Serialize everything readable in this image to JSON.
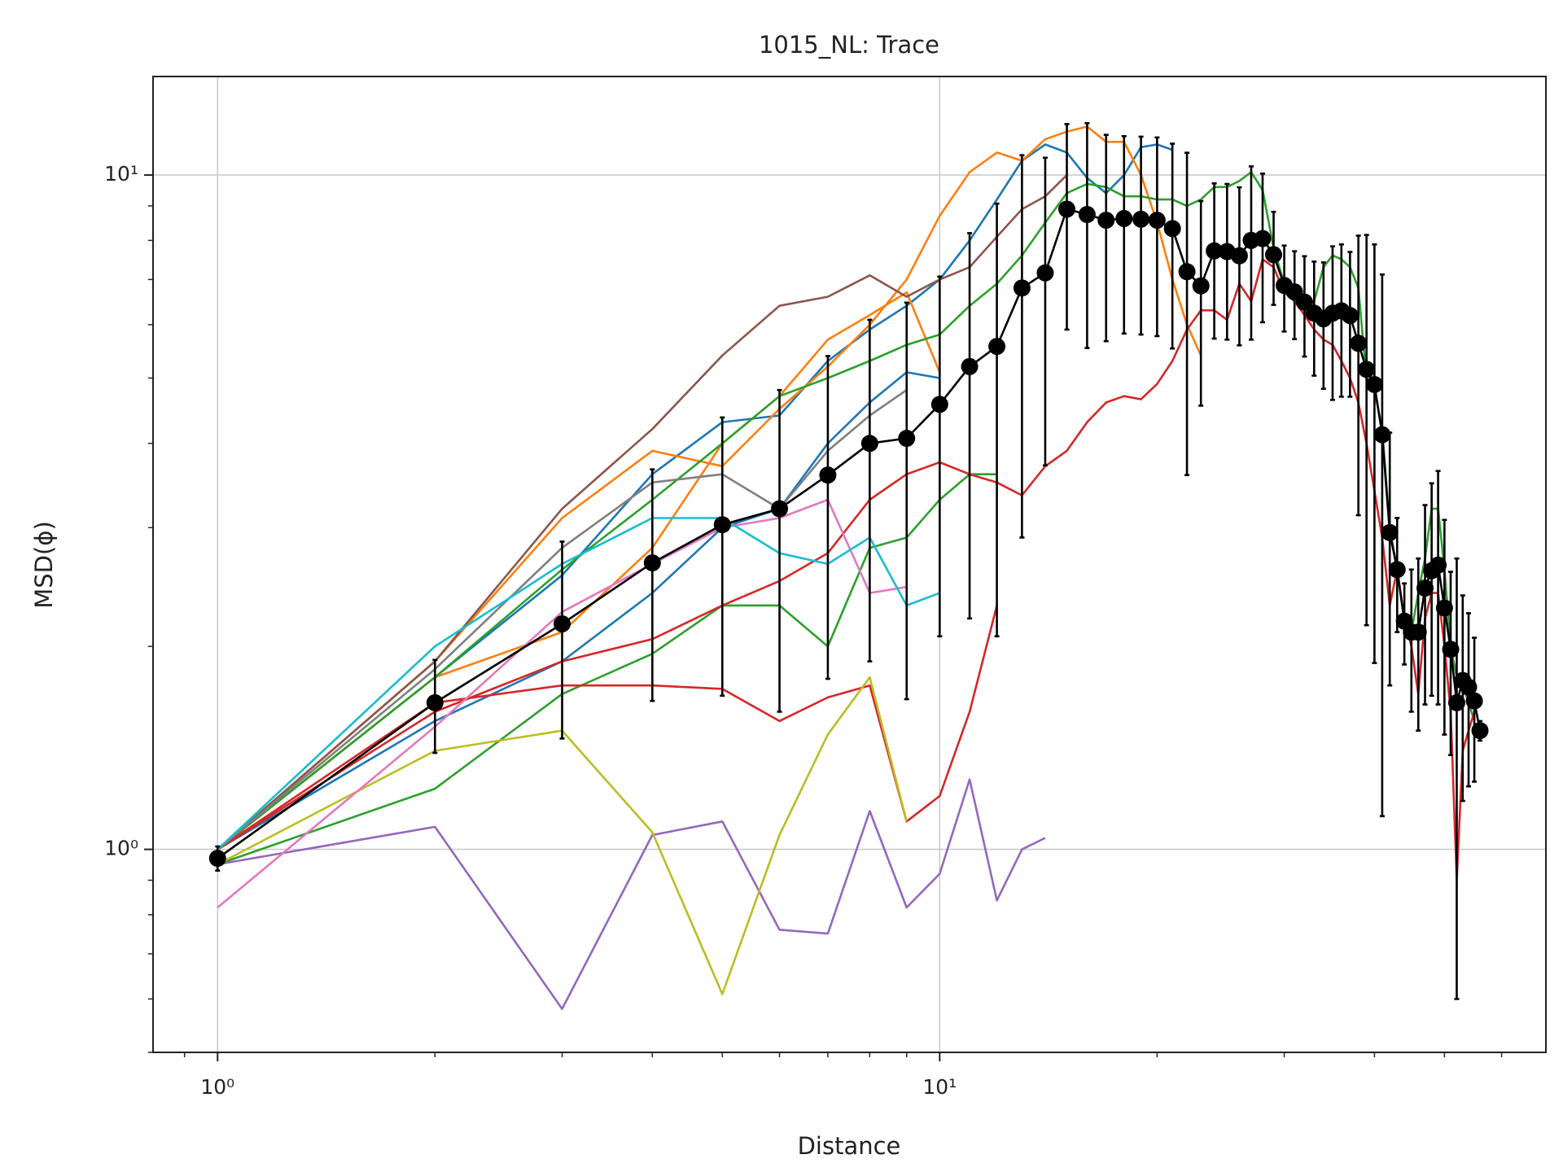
{
  "chart_data": {
    "type": "line",
    "title": "1015_NL: Trace",
    "xlabel": "Distance",
    "ylabel": "MSD(ϕ)",
    "xscale": "log",
    "yscale": "log",
    "grid": true,
    "xlim": [
      0.814,
      69.1
    ],
    "ylim": [
      0.5,
      14.0
    ],
    "xticks": [
      {
        "value": 1,
        "label": "10⁰"
      },
      {
        "value": 10,
        "label": "10¹"
      }
    ],
    "yticks": [
      {
        "value": 1,
        "label": "10⁰"
      },
      {
        "value": 10,
        "label": "10¹"
      }
    ],
    "xminorticks": [
      0.9,
      2,
      3,
      4,
      5,
      6,
      7,
      8,
      9,
      20,
      30,
      40,
      50,
      60
    ],
    "yminorticks": [
      0.5,
      0.6,
      0.7,
      0.8,
      0.9,
      2,
      3,
      4,
      5,
      6,
      7,
      8,
      9
    ],
    "x": [
      1,
      2,
      3,
      4,
      5,
      6,
      7,
      8,
      9,
      10,
      11,
      12,
      13,
      14,
      15,
      16,
      17,
      18,
      19,
      20,
      21,
      22,
      23,
      24,
      25,
      26,
      27,
      28,
      29,
      30,
      31,
      32,
      33,
      34,
      35,
      36,
      37,
      38,
      39,
      40,
      41,
      42,
      43,
      44,
      45,
      46,
      47,
      48,
      49,
      50,
      51,
      52,
      53,
      54,
      55,
      56
    ],
    "series": [
      {
        "color": "#1f77b4",
        "values": [
          1.0,
          1.8,
          2.55,
          3.6,
          4.3,
          4.4,
          5.3,
          5.9,
          6.4,
          7.0,
          8.0,
          9.2,
          10.5,
          11.1,
          10.8,
          9.9,
          9.4,
          10.0,
          11.0,
          11.1,
          10.9,
          null,
          null,
          null,
          null,
          null,
          null,
          null,
          null,
          null,
          null,
          null,
          null,
          null,
          null,
          null,
          null,
          null,
          null,
          null,
          null,
          null,
          null,
          null,
          null,
          null,
          null,
          null,
          null,
          null,
          null,
          null,
          null,
          null,
          null,
          null
        ]
      },
      {
        "color": "#1f77b4",
        "values": [
          1.0,
          1.55,
          1.9,
          2.4,
          3.0,
          3.2,
          4.0,
          4.6,
          5.1,
          5.0,
          null,
          null,
          null,
          null,
          null,
          null,
          null,
          null,
          null,
          null,
          null,
          null,
          null,
          null,
          null,
          null,
          null,
          null,
          null,
          null,
          null,
          null,
          null,
          null,
          null,
          null,
          null,
          null,
          null,
          null,
          null,
          null,
          null,
          null,
          null,
          null,
          null,
          null,
          null,
          null,
          null,
          null,
          null,
          null,
          null,
          null
        ]
      },
      {
        "color": "#ff7f0e",
        "values": [
          1.0,
          1.9,
          3.1,
          3.9,
          3.7,
          4.5,
          5.2,
          6.0,
          7.0,
          8.7,
          10.1,
          10.8,
          10.5,
          11.3,
          11.6,
          11.8,
          11.2,
          11.2,
          10.0,
          8.5,
          7.0,
          6.0,
          5.4,
          null,
          null,
          null,
          null,
          null,
          null,
          null,
          null,
          null,
          null,
          null,
          null,
          null,
          null,
          null,
          null,
          null,
          null,
          null,
          null,
          null,
          null,
          null,
          null,
          null,
          null,
          null,
          null,
          null,
          null,
          null,
          null,
          null
        ]
      },
      {
        "color": "#ff7f0e",
        "values": [
          1.0,
          1.8,
          2.1,
          2.8,
          4.0,
          4.7,
          5.7,
          6.2,
          6.7,
          5.1,
          null,
          null,
          null,
          null,
          null,
          null,
          null,
          null,
          null,
          null,
          null,
          null,
          null,
          null,
          null,
          null,
          null,
          null,
          null,
          null,
          null,
          null,
          null,
          null,
          null,
          null,
          null,
          null,
          null,
          null,
          null,
          null,
          null,
          null,
          null,
          null,
          null,
          null,
          null,
          null,
          null,
          null,
          null,
          null,
          null,
          null
        ]
      },
      {
        "color": "#2ca02c",
        "values": [
          1.0,
          1.8,
          2.6,
          3.3,
          4.0,
          4.7,
          5.0,
          5.3,
          5.6,
          5.8,
          6.4,
          6.9,
          7.6,
          8.5,
          9.4,
          9.7,
          9.6,
          9.3,
          9.3,
          9.2,
          9.2,
          9.0,
          9.2,
          9.6,
          9.6,
          9.8,
          10.1,
          9.5,
          7.8,
          6.9,
          6.6,
          6.4,
          6.5,
          7.3,
          7.6,
          7.5,
          7.3,
          6.8,
          5.0,
          4.8,
          4.2,
          3.0,
          2.6,
          2.2,
          2.1,
          2.4,
          2.7,
          3.2,
          3.2,
          2.6,
          2.0,
          1.8,
          1.75,
          1.65,
          1.55,
          null
        ]
      },
      {
        "color": "#2ca02c",
        "values": [
          0.95,
          1.23,
          1.7,
          1.95,
          2.3,
          2.3,
          2.0,
          2.8,
          2.9,
          3.3,
          3.6,
          3.6,
          null,
          null,
          null,
          null,
          null,
          null,
          null,
          null,
          null,
          null,
          null,
          null,
          null,
          null,
          null,
          null,
          null,
          null,
          null,
          null,
          null,
          null,
          null,
          null,
          null,
          null,
          null,
          null,
          null,
          null,
          null,
          null,
          null,
          null,
          null,
          null,
          null,
          null,
          null,
          null,
          null,
          null,
          null,
          null
        ]
      },
      {
        "color": "#d62728",
        "values": [
          1.0,
          1.65,
          1.75,
          1.75,
          1.73,
          1.55,
          1.68,
          1.75,
          1.1,
          1.2,
          1.6,
          2.3,
          null,
          null,
          null,
          null,
          null,
          null,
          null,
          null,
          null,
          null,
          null,
          null,
          null,
          null,
          null,
          null,
          null,
          null,
          null,
          null,
          null,
          null,
          null,
          null,
          null,
          null,
          null,
          null,
          null,
          null,
          null,
          null,
          null,
          null,
          null,
          null,
          null,
          null,
          null,
          null,
          null,
          null,
          null,
          null
        ]
      },
      {
        "color": "#d62728",
        "values": [
          1.0,
          1.6,
          1.9,
          2.05,
          2.3,
          2.5,
          2.75,
          3.3,
          3.6,
          3.75,
          3.6,
          3.5,
          3.35,
          3.7,
          3.9,
          4.3,
          4.6,
          4.7,
          4.65,
          4.9,
          5.3,
          5.9,
          6.3,
          6.3,
          6.1,
          6.9,
          6.5,
          7.5,
          7.3,
          6.7,
          6.5,
          6.2,
          5.9,
          5.7,
          5.6,
          5.3,
          5.0,
          4.6,
          4.0,
          3.4,
          2.9,
          2.3,
          2.6,
          2.2,
          2.0,
          1.7,
          2.2,
          2.4,
          2.4,
          2.0,
          1.6,
          0.9,
          1.4,
          1.5,
          1.6,
          null
        ]
      },
      {
        "color": "#8c564b",
        "values": [
          1.0,
          1.9,
          3.2,
          4.2,
          5.4,
          6.4,
          6.6,
          7.1,
          6.6,
          7.0,
          7.3,
          8.1,
          8.9,
          9.3,
          10.0,
          null,
          null,
          null,
          null,
          null,
          null,
          null,
          null,
          null,
          null,
          null,
          null,
          null,
          null,
          null,
          null,
          null,
          null,
          null,
          null,
          null,
          null,
          null,
          null,
          null,
          null,
          null,
          null,
          null,
          null,
          null,
          null,
          null,
          null,
          null,
          null,
          null,
          null,
          null,
          null,
          null
        ]
      },
      {
        "color": "#9467bd",
        "values": [
          0.95,
          1.08,
          0.58,
          1.05,
          1.1,
          0.76,
          0.75,
          1.14,
          0.82,
          0.92,
          1.27,
          0.84,
          1.0,
          1.04,
          null,
          null,
          null,
          null,
          null,
          null,
          null,
          null,
          null,
          null,
          null,
          null,
          null,
          null,
          null,
          null,
          null,
          null,
          null,
          null,
          null,
          null,
          null,
          null,
          null,
          null,
          null,
          null,
          null,
          null,
          null,
          null,
          null,
          null,
          null,
          null,
          null,
          null,
          null,
          null,
          null,
          null
        ]
      },
      {
        "color": "#bcbd22",
        "values": [
          0.95,
          1.4,
          1.5,
          1.06,
          0.61,
          1.05,
          1.48,
          1.8,
          1.1,
          null,
          null,
          null,
          null,
          null,
          null,
          null,
          null,
          null,
          null,
          null,
          null,
          null,
          null,
          null,
          null,
          null,
          null,
          null,
          null,
          null,
          null,
          null,
          null,
          null,
          null,
          null,
          null,
          null,
          null,
          null,
          null,
          null,
          null,
          null,
          null,
          null,
          null,
          null,
          null,
          null,
          null,
          null,
          null,
          null,
          null,
          null
        ]
      },
      {
        "color": "#e377c2",
        "values": [
          0.82,
          1.52,
          2.25,
          2.65,
          3.0,
          3.1,
          3.3,
          2.4,
          2.45,
          null,
          null,
          null,
          null,
          null,
          null,
          null,
          null,
          null,
          null,
          null,
          null,
          null,
          null,
          null,
          null,
          null,
          null,
          null,
          null,
          null,
          null,
          null,
          null,
          null,
          null,
          null,
          null,
          null,
          null,
          null,
          null,
          null,
          null,
          null,
          null,
          null,
          null,
          null,
          null,
          null,
          null,
          null,
          null,
          null,
          null,
          null
        ]
      },
      {
        "color": "#7f7f7f",
        "values": [
          1.0,
          1.85,
          2.8,
          3.5,
          3.6,
          3.2,
          3.9,
          4.4,
          4.8,
          null,
          null,
          null,
          null,
          null,
          null,
          null,
          null,
          null,
          null,
          null,
          null,
          null,
          null,
          null,
          null,
          null,
          null,
          null,
          null,
          null,
          null,
          null,
          null,
          null,
          null,
          null,
          null,
          null,
          null,
          null,
          null,
          null,
          null,
          null,
          null,
          null,
          null,
          null,
          null,
          null,
          null,
          null,
          null,
          null,
          null,
          null
        ]
      },
      {
        "color": "#17becf",
        "values": [
          1.0,
          2.0,
          2.65,
          3.1,
          3.1,
          2.75,
          2.65,
          2.9,
          2.3,
          2.4,
          null,
          null,
          null,
          null,
          null,
          null,
          null,
          null,
          null,
          null,
          null,
          null,
          null,
          null,
          null,
          null,
          null,
          null,
          null,
          null,
          null,
          null,
          null,
          null,
          null,
          null,
          null,
          null,
          null,
          null,
          null,
          null,
          null,
          null,
          null,
          null,
          null,
          null,
          null,
          null,
          null,
          null,
          null,
          null,
          null,
          null
        ]
      },
      {
        "color": "#000000",
        "markers": true,
        "values": [
          0.97,
          1.65,
          2.16,
          2.66,
          3.03,
          3.2,
          3.59,
          4.0,
          4.07,
          4.57,
          5.2,
          5.57,
          6.8,
          7.16,
          8.9,
          8.74,
          8.57,
          8.62,
          8.6,
          8.57,
          8.33,
          7.19,
          6.85,
          7.72,
          7.7,
          7.59,
          8.0,
          8.05,
          7.62,
          6.86,
          6.71,
          6.48,
          6.24,
          6.12,
          6.24,
          6.29,
          6.19,
          5.63,
          5.15,
          4.89,
          4.12,
          2.95,
          2.6,
          2.18,
          2.1,
          2.1,
          2.44,
          2.59,
          2.64,
          2.28,
          1.98,
          1.65,
          1.78,
          1.74,
          1.66,
          1.5
        ],
        "errors": [
          0.04,
          0.26,
          0.7,
          1.0,
          1.34,
          1.6,
          1.8,
          2.1,
          2.4,
          2.5,
          3.0,
          3.5,
          3.9,
          3.45,
          3.0,
          3.2,
          2.9,
          2.8,
          2.8,
          2.8,
          2.8,
          3.6,
          2.3,
          2.0,
          2.0,
          2.0,
          2.3,
          2.0,
          1.2,
          1.0,
          1.0,
          1.1,
          1.2,
          1.3,
          1.6,
          1.6,
          1.5,
          2.5,
          3.0,
          3.0,
          3.0,
          1.2,
          0.5,
          0.3,
          0.5,
          0.6,
          0.8,
          0.9,
          1.0,
          0.8,
          0.6,
          1.05,
          0.6,
          0.5,
          0.4,
          0.05
        ]
      }
    ]
  }
}
